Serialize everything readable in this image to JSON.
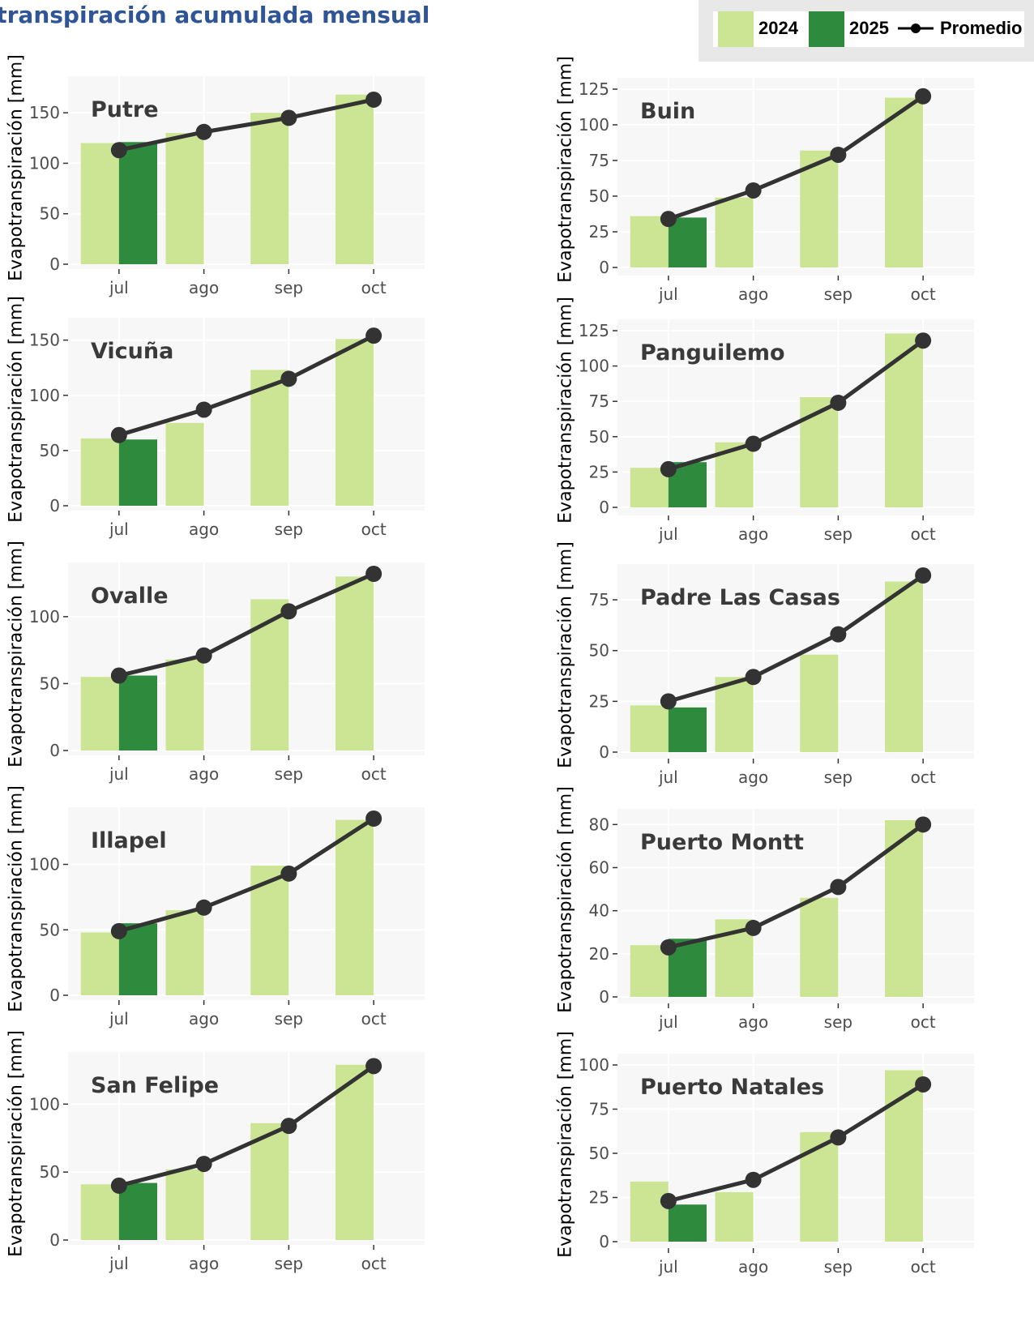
{
  "title": "otranspiración acumulada mensual",
  "legend": {
    "label_2024": "2024",
    "label_2025": "2025",
    "label_promedio": "Promedio"
  },
  "colors": {
    "bar_2024": "#cce594",
    "bar_2025": "#2e8b3e",
    "line": "#333333",
    "panel_bg": "#f7f7f7",
    "grid": "#ffffff",
    "title": "#2f5597"
  },
  "chart_data": [
    {
      "type": "bar",
      "station": "Putre",
      "ylabel": "Evapotranspiración [mm]",
      "categories": [
        "jul",
        "ago",
        "sep",
        "oct"
      ],
      "ylim": [
        0,
        175
      ],
      "yticks": [
        0,
        50,
        100,
        150
      ],
      "series": [
        {
          "name": "2024",
          "values": [
            120,
            130,
            150,
            168
          ]
        },
        {
          "name": "2025",
          "values": [
            121,
            null,
            null,
            null
          ]
        },
        {
          "name": "Promedio",
          "values": [
            113,
            131,
            145,
            163
          ]
        }
      ]
    },
    {
      "type": "bar",
      "station": "Buin",
      "ylabel": "Evapotranspiración [mm]",
      "categories": [
        "jul",
        "ago",
        "sep",
        "oct"
      ],
      "ylim": [
        0,
        125
      ],
      "yticks": [
        0,
        25,
        50,
        75,
        100,
        125
      ],
      "series": [
        {
          "name": "2024",
          "values": [
            36,
            49,
            82,
            119
          ]
        },
        {
          "name": "2025",
          "values": [
            35,
            null,
            null,
            null
          ]
        },
        {
          "name": "Promedio",
          "values": [
            34,
            54,
            79,
            120
          ]
        }
      ]
    },
    {
      "type": "bar",
      "station": "Vicuña",
      "ylabel": "Evapotranspiración [mm]",
      "categories": [
        "jul",
        "ago",
        "sep",
        "oct"
      ],
      "ylim": [
        0,
        160
      ],
      "yticks": [
        0,
        50,
        100,
        150
      ],
      "series": [
        {
          "name": "2024",
          "values": [
            61,
            75,
            123,
            151
          ]
        },
        {
          "name": "2025",
          "values": [
            60,
            null,
            null,
            null
          ]
        },
        {
          "name": "Promedio",
          "values": [
            64,
            87,
            115,
            154
          ]
        }
      ]
    },
    {
      "type": "bar",
      "station": "Panguilemo",
      "ylabel": "Evapotranspiración [mm]",
      "categories": [
        "jul",
        "ago",
        "sep",
        "oct"
      ],
      "ylim": [
        0,
        125
      ],
      "yticks": [
        0,
        25,
        50,
        75,
        100,
        125
      ],
      "series": [
        {
          "name": "2024",
          "values": [
            28,
            46,
            78,
            123
          ]
        },
        {
          "name": "2025",
          "values": [
            32,
            null,
            null,
            null
          ]
        },
        {
          "name": "Promedio",
          "values": [
            27,
            45,
            74,
            118
          ]
        }
      ]
    },
    {
      "type": "bar",
      "station": "Ovalle",
      "ylabel": "Evapotranspiración [mm]",
      "categories": [
        "jul",
        "ago",
        "sep",
        "oct"
      ],
      "ylim": [
        0,
        132
      ],
      "yticks": [
        0,
        50,
        100
      ],
      "series": [
        {
          "name": "2024",
          "values": [
            55,
            68,
            113,
            130
          ]
        },
        {
          "name": "2025",
          "values": [
            56,
            null,
            null,
            null
          ]
        },
        {
          "name": "Promedio",
          "values": [
            56,
            71,
            104,
            132
          ]
        }
      ]
    },
    {
      "type": "bar",
      "station": "Padre Las Casas",
      "ylabel": "Evapotranspiración [mm]",
      "categories": [
        "jul",
        "ago",
        "sep",
        "oct"
      ],
      "ylim": [
        0,
        87
      ],
      "yticks": [
        0,
        25,
        50,
        75
      ],
      "series": [
        {
          "name": "2024",
          "values": [
            23,
            37,
            48,
            84
          ]
        },
        {
          "name": "2025",
          "values": [
            22,
            null,
            null,
            null
          ]
        },
        {
          "name": "Promedio",
          "values": [
            25,
            37,
            58,
            87
          ]
        }
      ]
    },
    {
      "type": "bar",
      "station": "Illapel",
      "ylabel": "Evapotranspiración [mm]",
      "categories": [
        "jul",
        "ago",
        "sep",
        "oct"
      ],
      "ylim": [
        0,
        135
      ],
      "yticks": [
        0,
        50,
        100
      ],
      "series": [
        {
          "name": "2024",
          "values": [
            48,
            65,
            99,
            134
          ]
        },
        {
          "name": "2025",
          "values": [
            55,
            null,
            null,
            null
          ]
        },
        {
          "name": "Promedio",
          "values": [
            49,
            67,
            93,
            135
          ]
        }
      ]
    },
    {
      "type": "bar",
      "station": "Puerto Montt",
      "ylabel": "Evapotranspiración [mm]",
      "categories": [
        "jul",
        "ago",
        "sep",
        "oct"
      ],
      "ylim": [
        0,
        82
      ],
      "yticks": [
        0,
        20,
        40,
        60,
        80
      ],
      "series": [
        {
          "name": "2024",
          "values": [
            24,
            36,
            46,
            82
          ]
        },
        {
          "name": "2025",
          "values": [
            27,
            null,
            null,
            null
          ]
        },
        {
          "name": "Promedio",
          "values": [
            23,
            32,
            51,
            80
          ]
        }
      ]
    },
    {
      "type": "bar",
      "station": "San Felipe",
      "ylabel": "Evapotranspiración [mm]",
      "categories": [
        "jul",
        "ago",
        "sep",
        "oct"
      ],
      "ylim": [
        0,
        130
      ],
      "yticks": [
        0,
        50,
        100
      ],
      "series": [
        {
          "name": "2024",
          "values": [
            41,
            52,
            86,
            129
          ]
        },
        {
          "name": "2025",
          "values": [
            42,
            null,
            null,
            null
          ]
        },
        {
          "name": "Promedio",
          "values": [
            40,
            56,
            84,
            128
          ]
        }
      ]
    },
    {
      "type": "bar",
      "station": "Puerto Natales",
      "ylabel": "Evapotranspiración [mm]",
      "categories": [
        "jul",
        "ago",
        "sep",
        "oct"
      ],
      "ylim": [
        0,
        100
      ],
      "yticks": [
        0,
        25,
        50,
        75,
        100
      ],
      "series": [
        {
          "name": "2024",
          "values": [
            34,
            28,
            62,
            97
          ]
        },
        {
          "name": "2025",
          "values": [
            21,
            null,
            null,
            null
          ]
        },
        {
          "name": "Promedio",
          "values": [
            23,
            35,
            59,
            89
          ]
        }
      ]
    }
  ]
}
